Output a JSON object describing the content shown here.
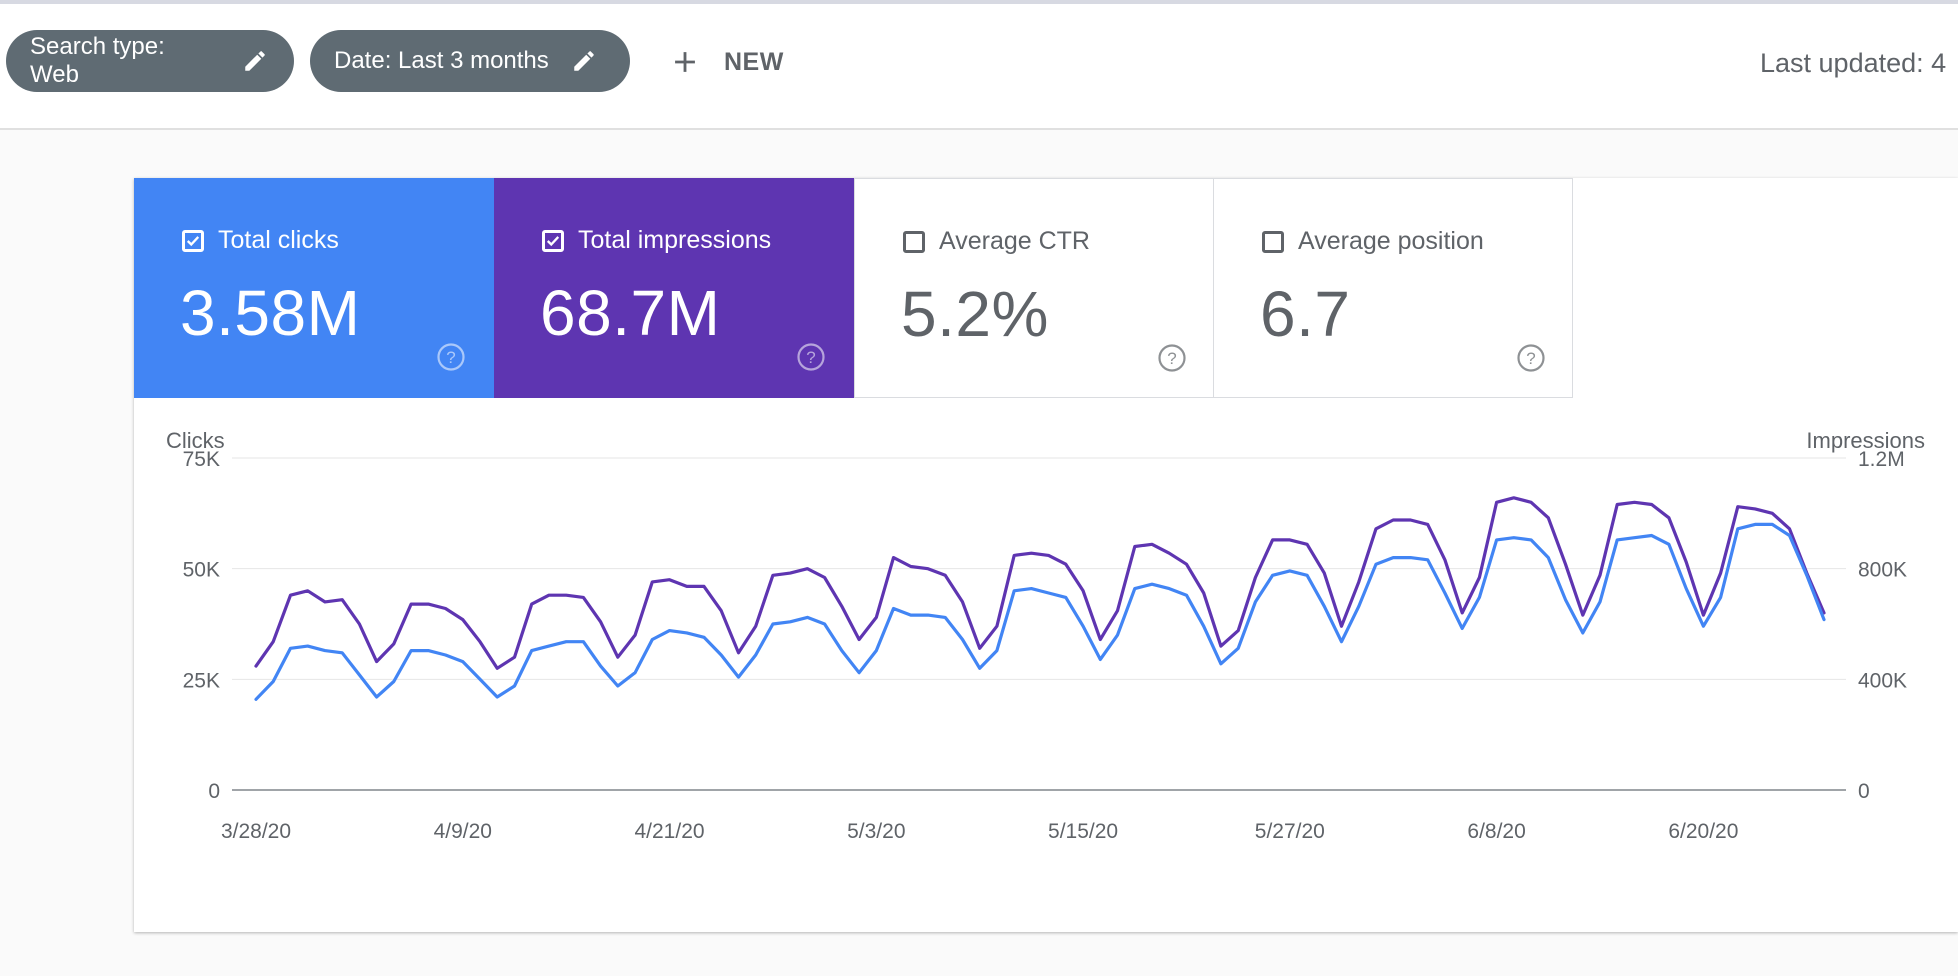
{
  "filters": {
    "search_type": "Search type: Web",
    "date": "Date: Last 3 months",
    "new_label": "NEW",
    "last_updated": "Last updated: 4"
  },
  "metrics": [
    {
      "label": "Total clicks",
      "value": "3.58M",
      "checked": true,
      "color": "#4285f4"
    },
    {
      "label": "Total impressions",
      "value": "68.7M",
      "checked": true,
      "color": "#5e35b1"
    },
    {
      "label": "Average CTR",
      "value": "5.2%",
      "checked": false
    },
    {
      "label": "Average position",
      "value": "6.7",
      "checked": false
    }
  ],
  "chart_data": {
    "type": "line",
    "ylabel_left": "Clicks",
    "ylabel_right": "Impressions",
    "y_ticks_left": [
      "0",
      "25K",
      "50K",
      "75K"
    ],
    "y_ticks_right": [
      "0",
      "400K",
      "800K",
      "1.2M"
    ],
    "ylim_left": [
      0,
      75000
    ],
    "ylim_right": [
      0,
      1200000
    ],
    "x_tick_labels": [
      "3/28/20",
      "4/9/20",
      "4/21/20",
      "5/3/20",
      "5/15/20",
      "5/27/20",
      "6/8/20",
      "6/20/20"
    ],
    "x_start": "3/28/20",
    "x_end": "6/26/20",
    "grid": true,
    "series": [
      {
        "name": "Total clicks",
        "axis": "left",
        "color": "#4285f4",
        "values": [
          20500,
          24500,
          32000,
          32500,
          31500,
          31000,
          26000,
          21000,
          24500,
          31500,
          31500,
          30500,
          29000,
          25000,
          21000,
          23500,
          31500,
          32500,
          33500,
          33500,
          28000,
          23500,
          26500,
          34000,
          36000,
          35500,
          34500,
          30500,
          25500,
          30500,
          37500,
          38000,
          39000,
          37500,
          31500,
          26500,
          31500,
          41000,
          39500,
          39500,
          39000,
          34000,
          27500,
          31500,
          45000,
          45500,
          44500,
          43500,
          37000,
          29500,
          35000,
          45500,
          46500,
          45500,
          44000,
          37000,
          28500,
          32000,
          42500,
          48500,
          49500,
          48500,
          41500,
          33500,
          41500,
          51000,
          52500,
          52500,
          52000,
          44500,
          36500,
          43500,
          56500,
          57000,
          56500,
          52500,
          43000,
          35500,
          42500,
          56500,
          57000,
          57500,
          55500,
          45500,
          37000,
          43500,
          59000,
          60000,
          60000,
          57500,
          48500,
          38500
        ]
      },
      {
        "name": "Total impressions",
        "axis": "right",
        "color": "#5e35b1",
        "values": [
          448000,
          536000,
          704000,
          720000,
          680000,
          688000,
          600000,
          464000,
          528000,
          672000,
          672000,
          656000,
          616000,
          536000,
          440000,
          480000,
          672000,
          704000,
          704000,
          696000,
          608000,
          480000,
          560000,
          752000,
          760000,
          736000,
          736000,
          648000,
          496000,
          592000,
          776000,
          784000,
          800000,
          768000,
          664000,
          544000,
          624000,
          840000,
          808000,
          800000,
          776000,
          680000,
          512000,
          592000,
          848000,
          856000,
          848000,
          816000,
          720000,
          544000,
          648000,
          880000,
          888000,
          856000,
          816000,
          712000,
          520000,
          576000,
          768000,
          904000,
          904000,
          888000,
          784000,
          592000,
          752000,
          944000,
          976000,
          976000,
          960000,
          832000,
          640000,
          768000,
          1040000,
          1056000,
          1040000,
          984000,
          816000,
          632000,
          776000,
          1032000,
          1040000,
          1032000,
          984000,
          824000,
          632000,
          784000,
          1024000,
          1016000,
          1000000,
          944000,
          784000,
          640000
        ]
      }
    ]
  }
}
